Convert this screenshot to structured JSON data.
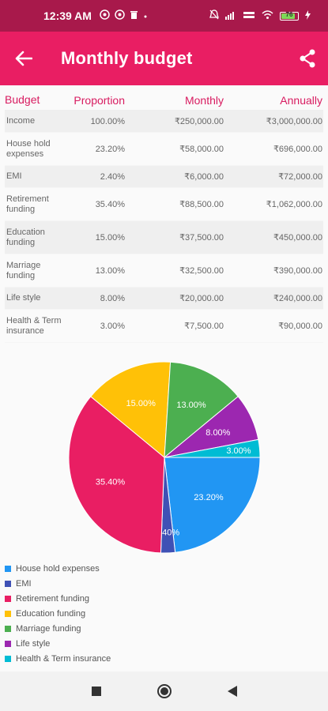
{
  "status": {
    "time": "12:39 AM",
    "icons": [
      "whatsapp-icon",
      "whatsapp-icon",
      "delete-icon",
      "dot"
    ],
    "battery": "76"
  },
  "appbar": {
    "title": "Monthly budget",
    "back_icon": "arrow-back-icon",
    "share_icon": "share-icon"
  },
  "table": {
    "headers": [
      "Budget",
      "Proportion",
      "Monthly",
      "Annually"
    ],
    "rows": [
      {
        "name": "Income",
        "prop": "100.00%",
        "monthly": "₹250,000.00",
        "annual": "₹3,000,000.00"
      },
      {
        "name": "House hold expenses",
        "prop": "23.20%",
        "monthly": "₹58,000.00",
        "annual": "₹696,000.00"
      },
      {
        "name": "EMI",
        "prop": "2.40%",
        "monthly": "₹6,000.00",
        "annual": "₹72,000.00"
      },
      {
        "name": "Retirement funding",
        "prop": "35.40%",
        "monthly": "₹88,500.00",
        "annual": "₹1,062,000.00"
      },
      {
        "name": "Education funding",
        "prop": "15.00%",
        "monthly": "₹37,500.00",
        "annual": "₹450,000.00"
      },
      {
        "name": "Marriage funding",
        "prop": "13.00%",
        "monthly": "₹32,500.00",
        "annual": "₹390,000.00"
      },
      {
        "name": "Life style",
        "prop": "8.00%",
        "monthly": "₹20,000.00",
        "annual": "₹240,000.00"
      },
      {
        "name": "Health & Term insurance",
        "prop": "3.00%",
        "monthly": "₹7,500.00",
        "annual": "₹90,000.00"
      }
    ]
  },
  "chart_data": {
    "type": "pie",
    "slices": [
      {
        "name": "House hold expenses",
        "value": 23.2,
        "label": "23.20%",
        "color": "#2196f3"
      },
      {
        "name": "EMI",
        "value": 2.4,
        "label": "2.40%",
        "color": "#3f51b5"
      },
      {
        "name": "Retirement funding",
        "value": 35.4,
        "label": "35.40%",
        "color": "#e91e63"
      },
      {
        "name": "Education funding",
        "value": 15.0,
        "label": "15.00%",
        "color": "#ffc107"
      },
      {
        "name": "Marriage funding",
        "value": 13.0,
        "label": "13.00%",
        "color": "#4caf50"
      },
      {
        "name": "Life style",
        "value": 8.0,
        "label": "8.00%",
        "color": "#9c27b0"
      },
      {
        "name": "Health & Term insurance",
        "value": 3.0,
        "label": "3.00%",
        "color": "#00bcd4"
      }
    ],
    "legend_placement": "bottom-left"
  },
  "nav": {
    "icons": [
      "recents-square-icon",
      "home-circle-icon",
      "back-triangle-icon"
    ]
  }
}
